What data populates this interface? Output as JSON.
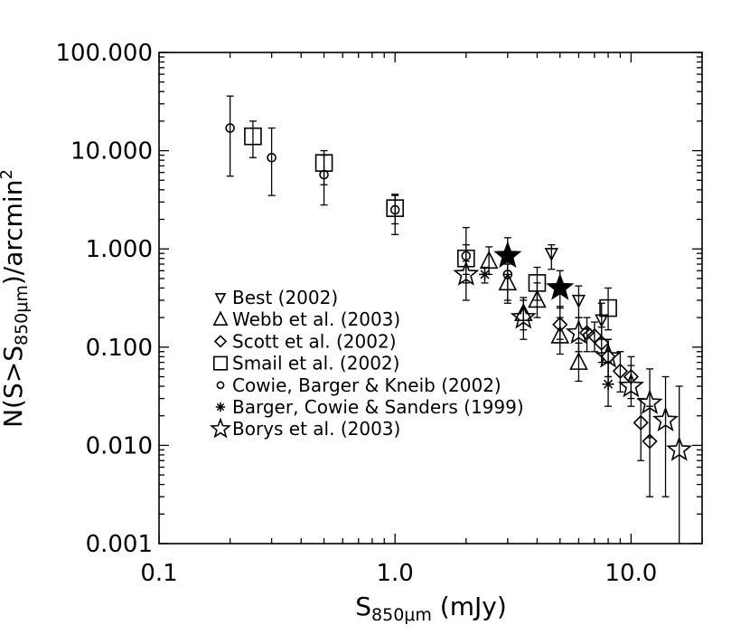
{
  "chart_data": {
    "type": "scatter",
    "xscale": "log",
    "yscale": "log",
    "xlim": [
      0.1,
      20
    ],
    "ylim": [
      0.001,
      100
    ],
    "x_ticks": [
      {
        "value": 0.1,
        "label": "0.1"
      },
      {
        "value": 1.0,
        "label": "1.0"
      },
      {
        "value": 10.0,
        "label": "10.0"
      }
    ],
    "y_ticks": [
      {
        "value": 0.001,
        "label": "0.001"
      },
      {
        "value": 0.01,
        "label": "0.010"
      },
      {
        "value": 0.1,
        "label": "0.100"
      },
      {
        "value": 1.0,
        "label": "1.000"
      },
      {
        "value": 10.0,
        "label": "10.000"
      },
      {
        "value": 100.0,
        "label": "100.000"
      }
    ],
    "xlabel": {
      "main": "S",
      "sub": "850μm",
      "rest": " (mJy)"
    },
    "ylabel": {
      "pre": "N(S>S",
      "sub": "850μm",
      "mid": ")/arcmin",
      "sup": "2"
    },
    "series": [
      {
        "name": "Best (2002)",
        "marker": "triangle-down",
        "points": [
          {
            "x": 4.6,
            "y": 0.9,
            "lo": 0.62,
            "hi": 1.1
          },
          {
            "x": 6.0,
            "y": 0.3,
            "lo": 0.2,
            "hi": 0.42
          },
          {
            "x": 7.5,
            "y": 0.19,
            "lo": 0.12,
            "hi": 0.28
          }
        ]
      },
      {
        "name": "Webb et al. (2003)",
        "marker": "triangle-up",
        "points": [
          {
            "x": 2.5,
            "y": 0.75,
            "lo": 0.55,
            "hi": 1.05
          },
          {
            "x": 3.0,
            "y": 0.45,
            "lo": 0.28,
            "hi": 0.7
          },
          {
            "x": 3.5,
            "y": 0.22,
            "lo": 0.15,
            "hi": 0.32
          },
          {
            "x": 4.0,
            "y": 0.3,
            "lo": 0.2,
            "hi": 0.45
          },
          {
            "x": 5.0,
            "y": 0.13,
            "lo": 0.085,
            "hi": 0.2
          },
          {
            "x": 6.0,
            "y": 0.07,
            "lo": 0.045,
            "hi": 0.11
          }
        ]
      },
      {
        "name": "Scott et al. (2002)",
        "marker": "diamond",
        "points": [
          {
            "x": 5.0,
            "y": 0.17,
            "lo": 0.12,
            "hi": 0.26
          },
          {
            "x": 6.5,
            "y": 0.14,
            "lo": 0.09,
            "hi": 0.2
          },
          {
            "x": 7.0,
            "y": 0.13,
            "lo": 0.09,
            "hi": 0.18
          },
          {
            "x": 7.5,
            "y": 0.11,
            "lo": 0.07,
            "hi": 0.16
          },
          {
            "x": 8.0,
            "y": 0.08,
            "lo": 0.05,
            "hi": 0.12
          },
          {
            "x": 9.0,
            "y": 0.057,
            "lo": 0.035,
            "hi": 0.09
          },
          {
            "x": 10.0,
            "y": 0.05,
            "lo": 0.03,
            "hi": 0.08
          },
          {
            "x": 11.0,
            "y": 0.017,
            "lo": 0.007,
            "hi": 0.03
          },
          {
            "x": 12.0,
            "y": 0.011,
            "lo": 0.003,
            "hi": 0.025
          }
        ]
      },
      {
        "name": "Smail et al. (2002)",
        "marker": "square",
        "points": [
          {
            "x": 0.25,
            "y": 14,
            "lo": 8.5,
            "hi": 20
          },
          {
            "x": 0.5,
            "y": 7.5,
            "lo": 4.5,
            "hi": 10
          },
          {
            "x": 1.0,
            "y": 2.6,
            "lo": 1.8,
            "hi": 3.5
          },
          {
            "x": 2.0,
            "y": 0.8,
            "lo": 0.55,
            "hi": 1.1
          },
          {
            "x": 4.0,
            "y": 0.45,
            "lo": 0.3,
            "hi": 0.65
          },
          {
            "x": 8.0,
            "y": 0.25,
            "lo": 0.15,
            "hi": 0.4
          }
        ]
      },
      {
        "name": "Cowie, Barger & Kneib (2002)",
        "marker": "circle",
        "points": [
          {
            "x": 0.2,
            "y": 17,
            "lo": 5.5,
            "hi": 36
          },
          {
            "x": 0.3,
            "y": 8.5,
            "lo": 3.5,
            "hi": 17
          },
          {
            "x": 0.5,
            "y": 5.7,
            "lo": 2.8,
            "hi": 9
          },
          {
            "x": 1.0,
            "y": 2.5,
            "lo": 1.4,
            "hi": 3.6
          },
          {
            "x": 2.0,
            "y": 0.85,
            "lo": 0.45,
            "hi": 1.65
          },
          {
            "x": 3.0,
            "y": 0.55,
            "lo": 0.3,
            "hi": 0.95
          }
        ]
      },
      {
        "name": "Barger, Cowie & Sanders (1999)",
        "marker": "asterisk",
        "points": [
          {
            "x": 2.4,
            "y": 0.55,
            "lo": 0.45,
            "hi": 0.65
          },
          {
            "x": 8.0,
            "y": 0.042,
            "lo": 0.025,
            "hi": 0.07
          }
        ]
      },
      {
        "name": "Borys et al. (2003)",
        "marker": "star",
        "points": [
          {
            "x": 2.0,
            "y": 0.55,
            "lo": 0.3,
            "hi": 0.75
          },
          {
            "x": 3.5,
            "y": 0.2,
            "lo": 0.12,
            "hi": 0.3
          },
          {
            "x": 6.0,
            "y": 0.14,
            "lo": 0.09,
            "hi": 0.2
          },
          {
            "x": 8.0,
            "y": 0.08,
            "lo": 0.05,
            "hi": 0.12
          },
          {
            "x": 10.0,
            "y": 0.04,
            "lo": 0.025,
            "hi": 0.065
          },
          {
            "x": 12.0,
            "y": 0.027,
            "lo": 0.012,
            "hi": 0.06
          },
          {
            "x": 14.0,
            "y": 0.018,
            "lo": 0.003,
            "hi": 0.05
          },
          {
            "x": 16.0,
            "y": 0.009,
            "lo": 0.0009,
            "hi": 0.04
          }
        ]
      },
      {
        "name": "",
        "marker": "filled-star",
        "points": [
          {
            "x": 3.0,
            "y": 0.85,
            "lo": 0.55,
            "hi": 1.3
          },
          {
            "x": 5.0,
            "y": 0.4,
            "lo": 0.25,
            "hi": 0.6
          }
        ]
      }
    ],
    "legend": {
      "position": "lower-left",
      "entries": [
        {
          "marker": "triangle-down",
          "label": "Best (2002)"
        },
        {
          "marker": "triangle-up",
          "label": "Webb et al. (2003)"
        },
        {
          "marker": "diamond",
          "label": "Scott et al. (2002)"
        },
        {
          "marker": "square",
          "label": "Smail et al. (2002)"
        },
        {
          "marker": "circle",
          "label": "Cowie, Barger & Kneib (2002)"
        },
        {
          "marker": "asterisk",
          "label": "Barger, Cowie & Sanders (1999)"
        },
        {
          "marker": "star",
          "label": "Borys et al. (2003)"
        }
      ]
    }
  }
}
